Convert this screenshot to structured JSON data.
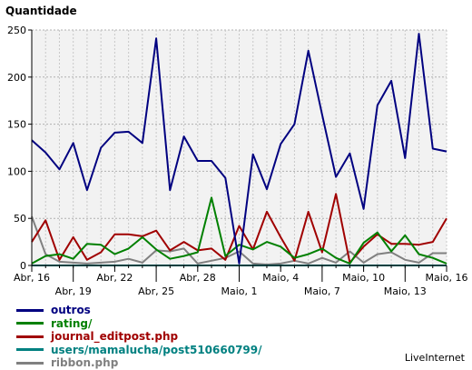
{
  "brand": "LiveInternet",
  "chart_data": {
    "type": "line",
    "title": "",
    "ylabel": "Quantidade",
    "xlabel": "",
    "ylim": [
      0,
      250
    ],
    "yticks": [
      0,
      50,
      100,
      150,
      200,
      250
    ],
    "grid": true,
    "legend_position": "bottom-left",
    "x_tick_labels": [
      {
        "index": 0,
        "label": "Abr, 16",
        "row": 0
      },
      {
        "index": 3,
        "label": "Abr, 19",
        "row": 1
      },
      {
        "index": 6,
        "label": "Abr, 22",
        "row": 0
      },
      {
        "index": 9,
        "label": "Abr, 25",
        "row": 1
      },
      {
        "index": 12,
        "label": "Abr, 28",
        "row": 0
      },
      {
        "index": 15,
        "label": "Maio, 1",
        "row": 1
      },
      {
        "index": 18,
        "label": "Maio, 4",
        "row": 0
      },
      {
        "index": 21,
        "label": "Maio, 7",
        "row": 1
      },
      {
        "index": 24,
        "label": "Maio, 10",
        "row": 0
      },
      {
        "index": 27,
        "label": "Maio, 13",
        "row": 1
      },
      {
        "index": 30,
        "label": "Maio, 16",
        "row": 0
      }
    ],
    "x_count": 31,
    "series": [
      {
        "name": "outros",
        "color": "#000080",
        "values": [
          133,
          120,
          102,
          130,
          80,
          125,
          141,
          142,
          130,
          241,
          80,
          137,
          111,
          111,
          93,
          2,
          118,
          81,
          129,
          150,
          228,
          160,
          94,
          119,
          60,
          170,
          196,
          114,
          246,
          124,
          121
        ]
      },
      {
        "name": "rating/",
        "color": "#008000",
        "values": [
          2,
          10,
          12,
          7,
          23,
          22,
          12,
          18,
          30,
          17,
          7,
          10,
          14,
          72,
          10,
          22,
          17,
          25,
          20,
          8,
          12,
          18,
          8,
          2,
          24,
          35,
          15,
          32,
          12,
          8,
          2
        ]
      },
      {
        "name": "journal_editpost.php",
        "color": "#A00000",
        "values": [
          25,
          48,
          6,
          30,
          6,
          14,
          33,
          33,
          31,
          37,
          16,
          25,
          16,
          18,
          6,
          42,
          17,
          57,
          30,
          5,
          57,
          14,
          76,
          3,
          20,
          33,
          23,
          23,
          22,
          25,
          50
        ]
      },
      {
        "name": "users/mamalucha/post510660799/",
        "color": "#008080",
        "values": [
          0,
          0,
          0,
          0,
          0,
          0,
          0,
          0,
          0,
          0,
          0,
          0,
          0,
          0,
          0,
          0,
          0,
          0,
          0,
          0,
          0,
          0,
          0,
          0,
          0,
          0,
          0,
          0,
          0,
          0,
          0
        ]
      },
      {
        "name": "ribbon.php",
        "color": "#808080",
        "values": [
          52,
          12,
          4,
          3,
          2,
          3,
          4,
          7,
          3,
          16,
          15,
          18,
          2,
          5,
          8,
          15,
          2,
          1,
          2,
          5,
          2,
          8,
          3,
          15,
          3,
          12,
          14,
          6,
          3,
          13,
          13
        ]
      }
    ]
  }
}
